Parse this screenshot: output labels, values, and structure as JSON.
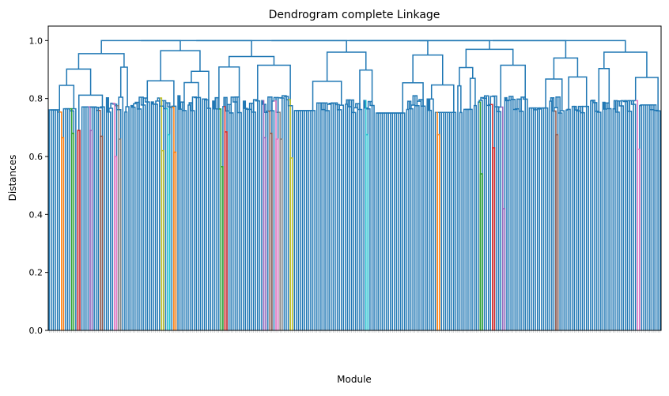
{
  "chart_data": {
    "type": "dendrogram",
    "title": "Dendrogram complete Linkage",
    "xlabel": "Module",
    "ylabel": "Distances",
    "ylim": [
      0,
      1.05
    ],
    "yticks": [
      "0.0",
      "0.2",
      "0.4",
      "0.6",
      "0.8",
      "1.0"
    ],
    "leaf_count": 300,
    "root_height": 1.0,
    "main_color": "#1f77b4",
    "top_clusters": [
      {
        "start": 0,
        "count": 40,
        "height": 0.955
      },
      {
        "start": 40,
        "count": 40,
        "height": 0.965
      },
      {
        "start": 80,
        "count": 40,
        "height": 0.945
      },
      {
        "start": 120,
        "count": 40,
        "height": 0.96
      },
      {
        "start": 160,
        "count": 40,
        "height": 0.95
      },
      {
        "start": 200,
        "count": 35,
        "height": 0.97
      },
      {
        "start": 235,
        "count": 30,
        "height": 0.94
      },
      {
        "start": 265,
        "count": 35,
        "height": 0.96
      }
    ],
    "colored_clusters": [
      {
        "leaf": 6,
        "height": 0.665,
        "color": "#ff7f0e"
      },
      {
        "leaf": 11,
        "height": 0.68,
        "color": "#2ca02c"
      },
      {
        "leaf": 14,
        "height": 0.69,
        "color": "#d62728"
      },
      {
        "leaf": 20,
        "height": 0.69,
        "color": "#9467bd"
      },
      {
        "leaf": 25,
        "height": 0.67,
        "color": "#8c564b"
      },
      {
        "leaf": 32,
        "height": 0.6,
        "color": "#e377c2"
      },
      {
        "leaf": 34,
        "height": 0.66,
        "color": "#7f7f7f"
      },
      {
        "leaf": 55,
        "height": 0.62,
        "color": "#bcbd22"
      },
      {
        "leaf": 58,
        "height": 0.675,
        "color": "#17becf"
      },
      {
        "leaf": 61,
        "height": 0.615,
        "color": "#ff7f0e"
      },
      {
        "leaf": 84,
        "height": 0.565,
        "color": "#2ca02c"
      },
      {
        "leaf": 86,
        "height": 0.685,
        "color": "#d62728"
      },
      {
        "leaf": 105,
        "height": 0.665,
        "color": "#9467bd"
      },
      {
        "leaf": 108,
        "height": 0.68,
        "color": "#8c564b"
      },
      {
        "leaf": 111,
        "height": 0.66,
        "color": "#e377c2"
      },
      {
        "leaf": 113,
        "height": 0.66,
        "color": "#7f7f7f"
      },
      {
        "leaf": 118,
        "height": 0.595,
        "color": "#bcbd22"
      },
      {
        "leaf": 155,
        "height": 0.675,
        "color": "#17becf"
      },
      {
        "leaf": 190,
        "height": 0.675,
        "color": "#ff7f0e"
      },
      {
        "leaf": 211,
        "height": 0.54,
        "color": "#2ca02c"
      },
      {
        "leaf": 217,
        "height": 0.63,
        "color": "#d62728"
      },
      {
        "leaf": 222,
        "height": 0.42,
        "color": "#9467bd"
      },
      {
        "leaf": 248,
        "height": 0.675,
        "color": "#8c564b"
      },
      {
        "leaf": 288,
        "height": 0.625,
        "color": "#e377c2"
      }
    ]
  }
}
